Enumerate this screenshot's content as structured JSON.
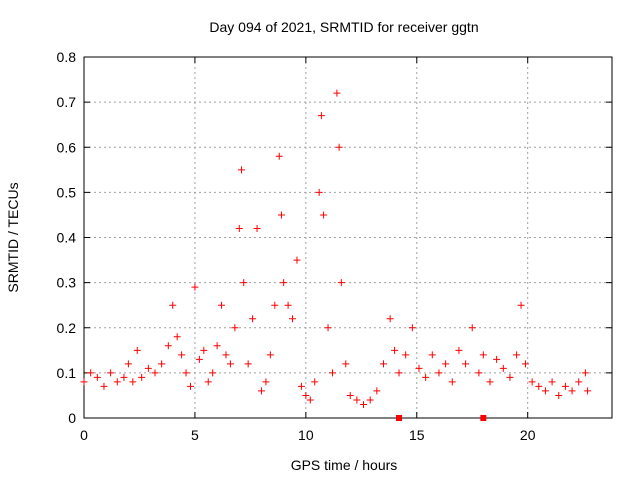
{
  "chart_data": {
    "type": "scatter",
    "title": "Day 094 of 2021, SRMTID for receiver ggtn",
    "xlabel": "GPS time / hours",
    "ylabel": "SRMTID / TECUs",
    "xlim": [
      0,
      23.8
    ],
    "ylim": [
      0,
      0.8
    ],
    "xticks": [
      0,
      5,
      10,
      15,
      20
    ],
    "xtick_labels": [
      "0",
      "5",
      "10",
      "15",
      "20"
    ],
    "yticks": [
      0,
      0.1,
      0.2,
      0.3,
      0.4,
      0.5,
      0.6,
      0.7,
      0.8
    ],
    "ytick_labels": [
      "0",
      "0.1",
      "0.2",
      "0.3",
      "0.4",
      "0.5",
      "0.6",
      "0.7",
      "0.8"
    ],
    "grid": true,
    "marker": "+",
    "series": [
      {
        "name": "SRMTID",
        "color": "#ff0000",
        "x": [
          0.0,
          0.3,
          0.6,
          0.9,
          1.2,
          1.5,
          1.8,
          2.0,
          2.2,
          2.4,
          2.6,
          2.9,
          3.2,
          3.5,
          3.8,
          4.0,
          4.2,
          4.4,
          4.6,
          4.8,
          5.0,
          5.2,
          5.4,
          5.6,
          5.8,
          6.0,
          6.2,
          6.4,
          6.6,
          6.8,
          7.0,
          7.1,
          7.2,
          7.4,
          7.6,
          7.8,
          8.0,
          8.2,
          8.4,
          8.6,
          8.8,
          8.9,
          9.0,
          9.2,
          9.4,
          9.6,
          9.8,
          10.0,
          10.2,
          10.4,
          10.6,
          10.7,
          10.8,
          11.0,
          11.2,
          11.4,
          11.5,
          11.6,
          11.8,
          12.0,
          12.3,
          12.6,
          12.9,
          13.2,
          13.5,
          13.8,
          14.0,
          14.2,
          14.5,
          14.8,
          15.1,
          15.4,
          15.7,
          16.0,
          16.3,
          16.6,
          16.9,
          17.2,
          17.5,
          17.8,
          18.0,
          18.3,
          18.6,
          18.9,
          19.2,
          19.5,
          19.7,
          19.9,
          20.2,
          20.5,
          20.8,
          21.1,
          21.4,
          21.7,
          22.0,
          22.3,
          22.6,
          22.7
        ],
        "y": [
          0.08,
          0.1,
          0.09,
          0.07,
          0.1,
          0.08,
          0.09,
          0.12,
          0.08,
          0.15,
          0.09,
          0.11,
          0.1,
          0.12,
          0.16,
          0.25,
          0.18,
          0.14,
          0.1,
          0.07,
          0.29,
          0.13,
          0.15,
          0.08,
          0.1,
          0.16,
          0.25,
          0.14,
          0.12,
          0.2,
          0.42,
          0.55,
          0.3,
          0.12,
          0.22,
          0.42,
          0.06,
          0.08,
          0.14,
          0.25,
          0.58,
          0.45,
          0.3,
          0.25,
          0.22,
          0.35,
          0.07,
          0.05,
          0.04,
          0.08,
          0.5,
          0.67,
          0.45,
          0.2,
          0.1,
          0.72,
          0.6,
          0.3,
          0.12,
          0.05,
          0.04,
          0.03,
          0.04,
          0.06,
          0.12,
          0.22,
          0.15,
          0.1,
          0.14,
          0.2,
          0.11,
          0.09,
          0.14,
          0.1,
          0.12,
          0.08,
          0.15,
          0.12,
          0.2,
          0.1,
          0.14,
          0.08,
          0.13,
          0.11,
          0.09,
          0.14,
          0.25,
          0.12,
          0.08,
          0.07,
          0.06,
          0.08,
          0.05,
          0.07,
          0.06,
          0.08,
          0.1,
          0.06
        ]
      }
    ],
    "markers_on_axis": [
      {
        "x": 14.2,
        "y": 0.0
      },
      {
        "x": 18.0,
        "y": 0.0
      }
    ]
  }
}
